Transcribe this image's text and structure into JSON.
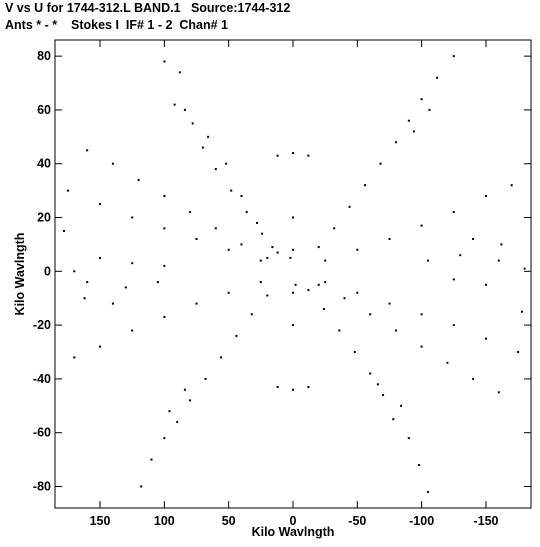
{
  "header": {
    "title_line1": "V vs U for 1744-312.L BAND.1   Source:1744-312",
    "title_line2": "Ants * - *    Stokes I  IF# 1 - 2  Chan# 1"
  },
  "chart_data": {
    "type": "scatter",
    "title": "V vs U for 1744-312.L BAND.1   Source:1744-312",
    "subtitle": "Ants * - *    Stokes I  IF# 1 - 2  Chan# 1",
    "xlabel": "Kilo Wavlngth",
    "ylabel": "Kilo Wavlngth",
    "xlim": [
      185,
      -185
    ],
    "ylim": [
      -88,
      86
    ],
    "x_ticks": [
      150,
      100,
      50,
      0,
      -50,
      -100,
      -150
    ],
    "x_tick_labels": [
      "150",
      "100",
      "50",
      "0",
      "-50",
      "-100",
      "-150"
    ],
    "y_ticks": [
      80,
      60,
      40,
      20,
      0,
      -20,
      -40,
      -60,
      -80
    ],
    "y_tick_labels": [
      "80",
      "60",
      "40",
      "20",
      "0",
      "-20",
      "-40",
      "-60",
      "-80"
    ],
    "grid": false,
    "point_color": "#000000",
    "series": [
      {
        "values": [
          {
            "u": 100,
            "v": 78
          },
          {
            "u": 88,
            "v": 74
          },
          {
            "u": 92,
            "v": 62
          },
          {
            "u": 78,
            "v": 55
          },
          {
            "u": 70,
            "v": 46
          },
          {
            "u": 60,
            "v": 38
          },
          {
            "u": 48,
            "v": 30
          },
          {
            "u": 36,
            "v": 22
          },
          {
            "u": 24,
            "v": 14
          },
          {
            "u": 12,
            "v": 7
          },
          {
            "u": 84,
            "v": 60
          },
          {
            "u": 66,
            "v": 50
          },
          {
            "u": 52,
            "v": 40
          },
          {
            "u": 40,
            "v": 28
          },
          {
            "u": 28,
            "v": 18
          },
          {
            "u": 16,
            "v": 9
          },
          {
            "u": -125,
            "v": 80
          },
          {
            "u": -112,
            "v": 72
          },
          {
            "u": -100,
            "v": 64
          },
          {
            "u": -90,
            "v": 56
          },
          {
            "u": -80,
            "v": 48
          },
          {
            "u": -68,
            "v": 40
          },
          {
            "u": -56,
            "v": 32
          },
          {
            "u": -44,
            "v": 24
          },
          {
            "u": -32,
            "v": 16
          },
          {
            "u": -20,
            "v": 9
          },
          {
            "u": -106,
            "v": 60
          },
          {
            "u": -94,
            "v": 52
          },
          {
            "u": 160,
            "v": 45
          },
          {
            "u": 140,
            "v": 40
          },
          {
            "u": 120,
            "v": 34
          },
          {
            "u": 100,
            "v": 28
          },
          {
            "u": 80,
            "v": 22
          },
          {
            "u": 60,
            "v": 16
          },
          {
            "u": 40,
            "v": 10
          },
          {
            "u": 20,
            "v": 5
          },
          {
            "u": 175,
            "v": 30
          },
          {
            "u": 150,
            "v": 25
          },
          {
            "u": 125,
            "v": 20
          },
          {
            "u": 100,
            "v": 16
          },
          {
            "u": 75,
            "v": 12
          },
          {
            "u": 50,
            "v": 8
          },
          {
            "u": 25,
            "v": 4
          },
          {
            "u": 178,
            "v": 15
          },
          {
            "u": 170,
            "v": 0
          },
          {
            "u": 150,
            "v": 5
          },
          {
            "u": 125,
            "v": 3
          },
          {
            "u": 100,
            "v": 2
          },
          {
            "u": -170,
            "v": 32
          },
          {
            "u": -150,
            "v": 28
          },
          {
            "u": -125,
            "v": 22
          },
          {
            "u": -100,
            "v": 17
          },
          {
            "u": -75,
            "v": 12
          },
          {
            "u": -50,
            "v": 8
          },
          {
            "u": -25,
            "v": 4
          },
          {
            "u": -180,
            "v": 1
          },
          {
            "u": -160,
            "v": 4
          },
          {
            "u": -130,
            "v": 6
          },
          {
            "u": -105,
            "v": 4
          },
          {
            "u": -162,
            "v": 10
          },
          {
            "u": -140,
            "v": 12
          },
          {
            "u": 0,
            "v": 44
          },
          {
            "u": -12,
            "v": 43
          },
          {
            "u": 12,
            "v": 43
          },
          {
            "u": 0,
            "v": 20
          },
          {
            "u": 0,
            "v": 8
          },
          {
            "u": 2,
            "v": 5
          }
        ]
      },
      {
        "values": [
          {
            "u": 118,
            "v": -80
          },
          {
            "u": 110,
            "v": -70
          },
          {
            "u": 100,
            "v": -62
          },
          {
            "u": 90,
            "v": -56
          },
          {
            "u": 80,
            "v": -48
          },
          {
            "u": 68,
            "v": -40
          },
          {
            "u": 56,
            "v": -32
          },
          {
            "u": 44,
            "v": -24
          },
          {
            "u": 32,
            "v": -16
          },
          {
            "u": 20,
            "v": -9
          },
          {
            "u": 96,
            "v": -52
          },
          {
            "u": 84,
            "v": -44
          },
          {
            "u": -105,
            "v": -82
          },
          {
            "u": -98,
            "v": -72
          },
          {
            "u": -90,
            "v": -62
          },
          {
            "u": -78,
            "v": -55
          },
          {
            "u": -70,
            "v": -46
          },
          {
            "u": -60,
            "v": -38
          },
          {
            "u": -48,
            "v": -30
          },
          {
            "u": -36,
            "v": -22
          },
          {
            "u": -24,
            "v": -14
          },
          {
            "u": -12,
            "v": -7
          },
          {
            "u": -84,
            "v": -50
          },
          {
            "u": -66,
            "v": -42
          },
          {
            "u": -160,
            "v": -45
          },
          {
            "u": -140,
            "v": -40
          },
          {
            "u": -120,
            "v": -34
          },
          {
            "u": -100,
            "v": -28
          },
          {
            "u": -80,
            "v": -22
          },
          {
            "u": -60,
            "v": -16
          },
          {
            "u": -40,
            "v": -10
          },
          {
            "u": -20,
            "v": -5
          },
          {
            "u": -175,
            "v": -30
          },
          {
            "u": -150,
            "v": -25
          },
          {
            "u": -125,
            "v": -20
          },
          {
            "u": -100,
            "v": -16
          },
          {
            "u": -75,
            "v": -12
          },
          {
            "u": -50,
            "v": -8
          },
          {
            "u": -25,
            "v": -4
          },
          {
            "u": -178,
            "v": -15
          },
          {
            "u": -150,
            "v": -5
          },
          {
            "u": -125,
            "v": -3
          },
          {
            "u": 170,
            "v": -32
          },
          {
            "u": 150,
            "v": -28
          },
          {
            "u": 125,
            "v": -22
          },
          {
            "u": 100,
            "v": -17
          },
          {
            "u": 75,
            "v": -12
          },
          {
            "u": 50,
            "v": -8
          },
          {
            "u": 25,
            "v": -4
          },
          {
            "u": 160,
            "v": -4
          },
          {
            "u": 130,
            "v": -6
          },
          {
            "u": 105,
            "v": -4
          },
          {
            "u": 162,
            "v": -10
          },
          {
            "u": 140,
            "v": -12
          },
          {
            "u": 0,
            "v": -44
          },
          {
            "u": -12,
            "v": -43
          },
          {
            "u": 12,
            "v": -43
          },
          {
            "u": 0,
            "v": -20
          },
          {
            "u": 0,
            "v": -8
          },
          {
            "u": -2,
            "v": -5
          }
        ]
      }
    ]
  }
}
